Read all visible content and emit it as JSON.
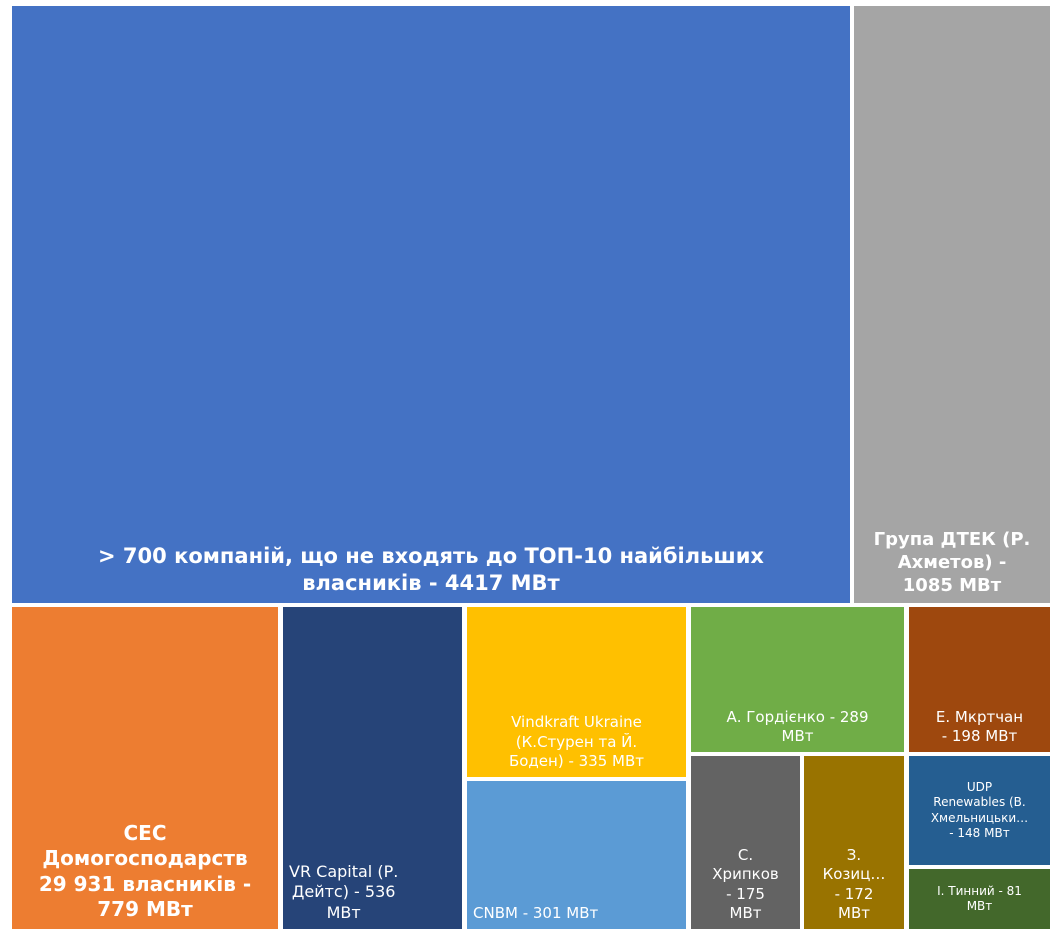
{
  "chart_data": {
    "type": "treemap",
    "title": "",
    "unit": "МВт",
    "tiles": [
      {
        "id": "t0",
        "label": "> 700 компаній, що не входять до ТОП-10 найбільших\nвласників - 4417 МВт",
        "value": 4417,
        "color": "#4472C4"
      },
      {
        "id": "t1",
        "label": "Група ДТЕК (Р.\nАхметов) -\n1085 МВт",
        "value": 1085,
        "color": "#A5A5A5"
      },
      {
        "id": "t2",
        "label": "СЕС\nДомогосподарств\n29 931 власників -\n779 МВт",
        "value": 779,
        "color": "#ED7D31"
      },
      {
        "id": "t3",
        "label": "VR Capital (Р.\nДейтс) - 536\nМВт",
        "value": 536,
        "color": "#264478"
      },
      {
        "id": "t4",
        "label": "Vindkraft Ukraine\n(К.Стурен та Й.\nБоден) - 335 МВт",
        "value": 335,
        "color": "#FFC000"
      },
      {
        "id": "t5",
        "label": "CNBM - 301 МВт",
        "value": 301,
        "color": "#5B9BD5"
      },
      {
        "id": "t6",
        "label": "А. Гордієнко - 289\nМВт",
        "value": 289,
        "color": "#70AD47"
      },
      {
        "id": "t7",
        "label": "Е. Мкртчан\n- 198 МВт",
        "value": 198,
        "color": "#9E480E"
      },
      {
        "id": "t8",
        "label": "С.\nХрипков\n- 175\nМВт",
        "value": 175,
        "color": "#636363"
      },
      {
        "id": "t9",
        "label": "З.\nКозиц…\n- 172\nМВт",
        "value": 172,
        "color": "#997300"
      },
      {
        "id": "t10",
        "label": "UDP\nRenewables (В.\nХмельницьки…\n- 148 МВт",
        "value": 148,
        "color": "#255E91"
      },
      {
        "id": "t11",
        "label": "І. Тинний - 81\nМВт",
        "value": 81,
        "color": "#43682B"
      }
    ]
  }
}
